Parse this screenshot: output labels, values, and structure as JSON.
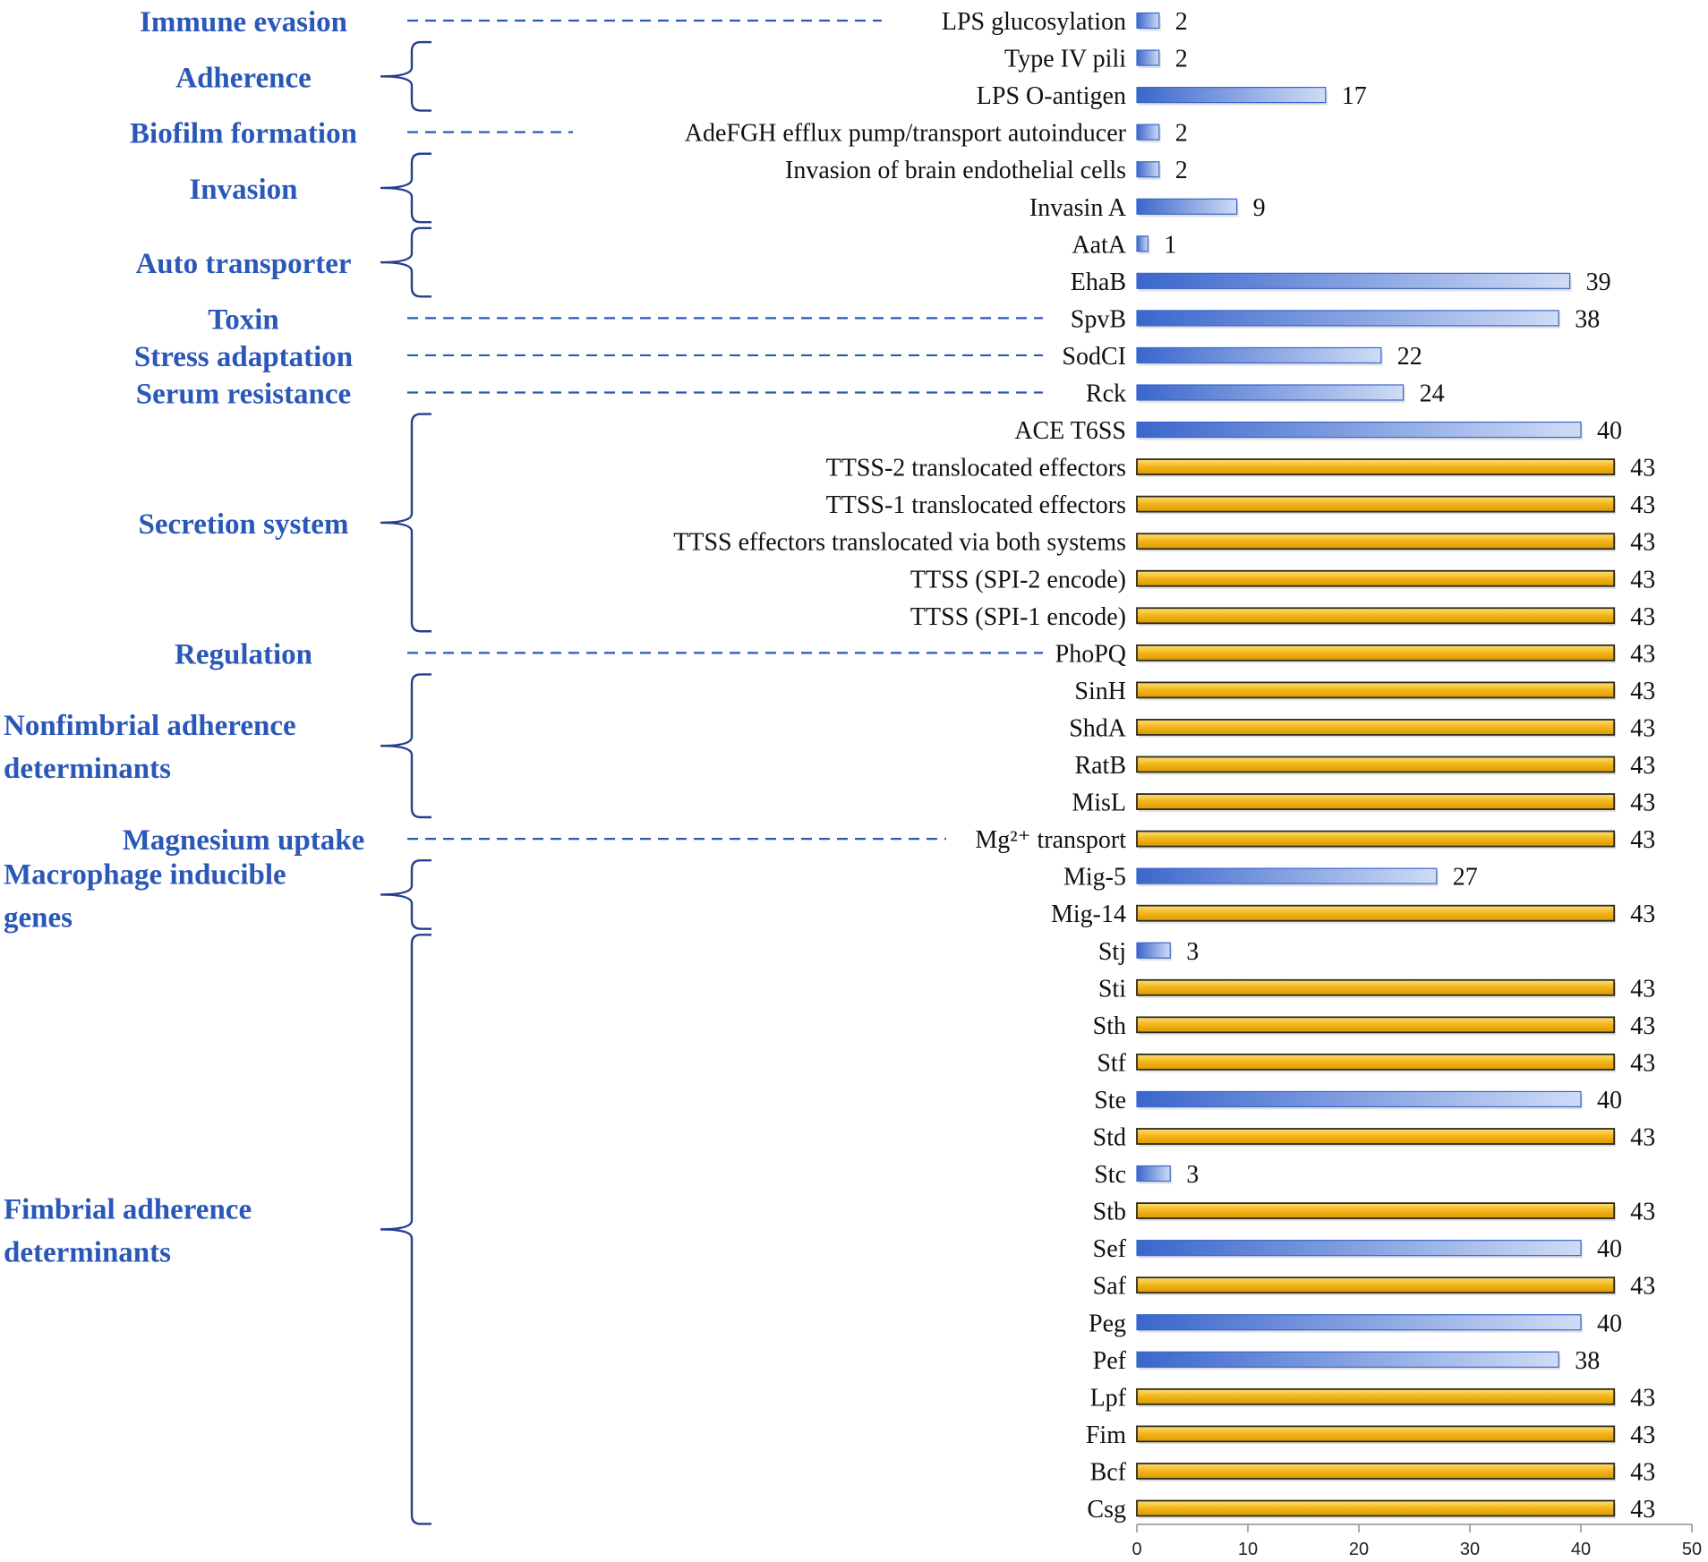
{
  "chart_data": {
    "type": "bar",
    "orientation": "horizontal",
    "xlim": [
      0,
      50
    ],
    "xticks": [
      0,
      10,
      20,
      30,
      40,
      50
    ],
    "colors": {
      "partial": "#3a66cc",
      "partial_light": "#cfdcf6",
      "full": "#f2b416",
      "full_dark": "#2f2a1a",
      "category_text": "#2a58b8"
    },
    "bars": [
      {
        "label": "LPS glucosylation",
        "value": 2,
        "full": false
      },
      {
        "label": "Type IV pili",
        "value": 2,
        "full": false
      },
      {
        "label": "LPS O-antigen",
        "value": 17,
        "full": false
      },
      {
        "label": "AdeFGH efflux pump/transport autoinducer",
        "value": 2,
        "full": false
      },
      {
        "label": "Invasion of brain endothelial cells",
        "value": 2,
        "full": false
      },
      {
        "label": "Invasin A",
        "value": 9,
        "full": false
      },
      {
        "label": "AatA",
        "value": 1,
        "full": false
      },
      {
        "label": "EhaB",
        "value": 39,
        "full": false
      },
      {
        "label": "SpvB",
        "value": 38,
        "full": false
      },
      {
        "label": "SodCI",
        "value": 22,
        "full": false
      },
      {
        "label": "Rck",
        "value": 24,
        "full": false
      },
      {
        "label": "ACE T6SS",
        "value": 40,
        "full": false
      },
      {
        "label": "TTSS-2 translocated effectors",
        "value": 43,
        "full": true
      },
      {
        "label": "TTSS-1 translocated effectors",
        "value": 43,
        "full": true
      },
      {
        "label": "TTSS effectors translocated via both systems",
        "value": 43,
        "full": true
      },
      {
        "label": "TTSS (SPI-2 encode)",
        "value": 43,
        "full": true
      },
      {
        "label": "TTSS (SPI-1 encode)",
        "value": 43,
        "full": true
      },
      {
        "label": "PhoPQ",
        "value": 43,
        "full": true
      },
      {
        "label": "SinH",
        "value": 43,
        "full": true
      },
      {
        "label": "ShdA",
        "value": 43,
        "full": true
      },
      {
        "label": "RatB",
        "value": 43,
        "full": true
      },
      {
        "label": "MisL",
        "value": 43,
        "full": true
      },
      {
        "label": "Mg²⁺ transport",
        "value": 43,
        "full": true
      },
      {
        "label": "Mig-5",
        "value": 27,
        "full": false
      },
      {
        "label": "Mig-14",
        "value": 43,
        "full": true
      },
      {
        "label": "Stj",
        "value": 3,
        "full": false
      },
      {
        "label": "Sti",
        "value": 43,
        "full": true
      },
      {
        "label": "Sth",
        "value": 43,
        "full": true
      },
      {
        "label": "Stf",
        "value": 43,
        "full": true
      },
      {
        "label": "Ste",
        "value": 40,
        "full": false
      },
      {
        "label": "Std",
        "value": 43,
        "full": true
      },
      {
        "label": "Stc",
        "value": 3,
        "full": false
      },
      {
        "label": "Stb",
        "value": 43,
        "full": true
      },
      {
        "label": "Sef",
        "value": 40,
        "full": false
      },
      {
        "label": "Saf",
        "value": 43,
        "full": true
      },
      {
        "label": "Peg",
        "value": 40,
        "full": false
      },
      {
        "label": "Pef",
        "value": 38,
        "full": false
      },
      {
        "label": "Lpf",
        "value": 43,
        "full": true
      },
      {
        "label": "Fim",
        "value": 43,
        "full": true
      },
      {
        "label": "Bcf",
        "value": 43,
        "full": true
      },
      {
        "label": "Csg",
        "value": 43,
        "full": true
      }
    ],
    "categories": [
      {
        "lines": [
          "Immune  evasion"
        ],
        "first": 0,
        "last": 0,
        "marker": "dash"
      },
      {
        "lines": [
          "Adherence"
        ],
        "first": 1,
        "last": 2,
        "marker": "brace"
      },
      {
        "lines": [
          "Biofilm formation"
        ],
        "first": 3,
        "last": 3,
        "marker": "dash"
      },
      {
        "lines": [
          "Invasion"
        ],
        "first": 4,
        "last": 5,
        "marker": "brace"
      },
      {
        "lines": [
          "Auto transporter"
        ],
        "first": 6,
        "last": 7,
        "marker": "brace"
      },
      {
        "lines": [
          "Toxin"
        ],
        "first": 8,
        "last": 8,
        "marker": "dash"
      },
      {
        "lines": [
          "Stress adaptation"
        ],
        "first": 9,
        "last": 9,
        "marker": "dash"
      },
      {
        "lines": [
          "Serum resistance"
        ],
        "first": 10,
        "last": 10,
        "marker": "dash"
      },
      {
        "lines": [
          "Secretion system"
        ],
        "first": 11,
        "last": 16,
        "marker": "brace"
      },
      {
        "lines": [
          "Regulation"
        ],
        "first": 17,
        "last": 17,
        "marker": "dash"
      },
      {
        "lines": [
          "Nonfimbrial adherence",
          "determinants"
        ],
        "first": 18,
        "last": 21,
        "marker": "brace"
      },
      {
        "lines": [
          "Magnesium uptake"
        ],
        "first": 22,
        "last": 22,
        "marker": "dash"
      },
      {
        "lines": [
          "Macrophage inducible",
          "genes"
        ],
        "first": 23,
        "last": 24,
        "marker": "brace"
      },
      {
        "lines": [
          "Fimbrial adherence",
          "determinants"
        ],
        "first": 25,
        "last": 40,
        "marker": "brace"
      }
    ]
  }
}
